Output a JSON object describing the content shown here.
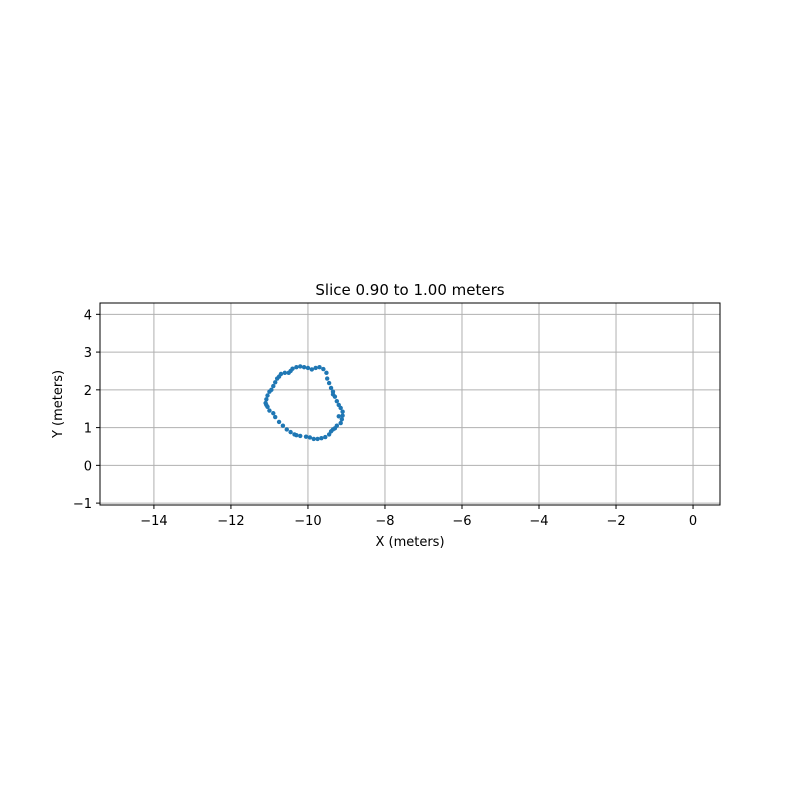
{
  "chart_data": {
    "type": "scatter",
    "title": "Slice 0.90 to 1.00 meters",
    "xlabel": "X (meters)",
    "ylabel": "Y (meters)",
    "xlim": [
      -15.4,
      0.7
    ],
    "ylim": [
      -1.05,
      4.3
    ],
    "xticks": [
      -14,
      -12,
      -10,
      -8,
      -6,
      -4,
      -2,
      0
    ],
    "yticks": [
      -1,
      0,
      1,
      2,
      3,
      4
    ],
    "xtick_labels": [
      "−14",
      "−12",
      "−10",
      "−8",
      "−6",
      "−4",
      "−2",
      "0"
    ],
    "ytick_labels": [
      "−1",
      "0",
      "1",
      "2",
      "3",
      "4"
    ],
    "grid": true,
    "series": [
      {
        "color": "#1f77b4",
        "points": [
          [
            -10.0,
            2.58
          ],
          [
            -10.1,
            2.6
          ],
          [
            -10.2,
            2.62
          ],
          [
            -10.3,
            2.6
          ],
          [
            -10.4,
            2.56
          ],
          [
            -10.5,
            2.45
          ],
          [
            -10.6,
            2.45
          ],
          [
            -10.7,
            2.42
          ],
          [
            -10.8,
            2.3
          ],
          [
            -10.85,
            2.2
          ],
          [
            -10.9,
            2.1
          ],
          [
            -10.95,
            2.0
          ],
          [
            -11.0,
            1.95
          ],
          [
            -11.05,
            1.85
          ],
          [
            -11.08,
            1.75
          ],
          [
            -11.1,
            1.65
          ],
          [
            -11.05,
            1.55
          ],
          [
            -11.0,
            1.45
          ],
          [
            -10.9,
            1.38
          ],
          [
            -10.85,
            1.28
          ],
          [
            -10.75,
            1.15
          ],
          [
            -10.65,
            1.05
          ],
          [
            -10.55,
            0.95
          ],
          [
            -10.45,
            0.88
          ],
          [
            -10.35,
            0.82
          ],
          [
            -10.2,
            0.78
          ],
          [
            -10.05,
            0.76
          ],
          [
            -9.95,
            0.74
          ],
          [
            -9.85,
            0.7
          ],
          [
            -9.75,
            0.7
          ],
          [
            -9.65,
            0.72
          ],
          [
            -9.55,
            0.75
          ],
          [
            -9.45,
            0.82
          ],
          [
            -9.4,
            0.9
          ],
          [
            -9.3,
            0.98
          ],
          [
            -9.25,
            1.05
          ],
          [
            -9.15,
            1.12
          ],
          [
            -9.12,
            1.22
          ],
          [
            -9.1,
            1.32
          ],
          [
            -9.1,
            1.42
          ],
          [
            -9.15,
            1.52
          ],
          [
            -9.2,
            1.6
          ],
          [
            -9.25,
            1.7
          ],
          [
            -9.3,
            1.82
          ],
          [
            -9.35,
            1.95
          ],
          [
            -9.4,
            2.05
          ],
          [
            -9.45,
            2.18
          ],
          [
            -9.5,
            2.3
          ],
          [
            -9.52,
            2.45
          ],
          [
            -9.6,
            2.55
          ],
          [
            -9.7,
            2.6
          ],
          [
            -9.8,
            2.58
          ],
          [
            -9.9,
            2.54
          ],
          [
            -10.45,
            2.5
          ],
          [
            -10.75,
            2.35
          ],
          [
            -9.35,
            0.95
          ],
          [
            -9.2,
            1.3
          ],
          [
            -9.35,
            1.88
          ],
          [
            -10.3,
            0.8
          ],
          [
            -11.08,
            1.6
          ]
        ]
      }
    ]
  }
}
